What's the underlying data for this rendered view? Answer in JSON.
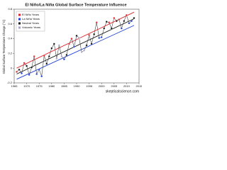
{
  "chart_data": {
    "type": "line",
    "title": "El Niño/La Niña Global Surface Temperature Influence",
    "y_label": "Global Surface Temperature Change (°C)",
    "source": "skepticalscience.com",
    "x": [
      1966,
      1967,
      1968,
      1969,
      1970,
      1971,
      1972,
      1973,
      1974,
      1975,
      1976,
      1977,
      1978,
      1979,
      1980,
      1981,
      1982,
      1983,
      1984,
      1985,
      1986,
      1987,
      1988,
      1989,
      1990,
      1991,
      1992,
      1993,
      1994,
      1995,
      1996,
      1997,
      1998,
      1999,
      2000,
      2001,
      2002,
      2003,
      2004,
      2005,
      2006,
      2007,
      2008,
      2009,
      2010,
      2011,
      2012,
      2013
    ],
    "series": [
      {
        "name": "El Niño Years",
        "color": "#e3262b",
        "values": [
          -0.05,
          null,
          null,
          0.07,
          null,
          null,
          null,
          0.16,
          null,
          null,
          null,
          0.17,
          null,
          null,
          null,
          null,
          null,
          null,
          null,
          null,
          null,
          0.33,
          0.4,
          null,
          null,
          null,
          null,
          null,
          null,
          0.45,
          null,
          null,
          0.62,
          null,
          null,
          null,
          null,
          0.62,
          null,
          0.68,
          null,
          0.66,
          null,
          null,
          0.72,
          null,
          null,
          null
        ]
      },
      {
        "name": "La Niña Years",
        "color": "#1f3fd6",
        "values": [
          null,
          null,
          -0.07,
          null,
          null,
          -0.09,
          null,
          null,
          -0.08,
          -0.02,
          -0.11,
          null,
          null,
          null,
          null,
          null,
          null,
          null,
          null,
          0.12,
          null,
          null,
          null,
          0.29,
          null,
          null,
          null,
          null,
          null,
          null,
          null,
          null,
          null,
          0.41,
          0.42,
          null,
          null,
          null,
          null,
          null,
          null,
          null,
          0.54,
          null,
          null,
          0.61,
          0.64,
          null
        ]
      },
      {
        "name": "Neutral Years",
        "color": "#111111",
        "values": [
          null,
          -0.02,
          null,
          null,
          0.03,
          null,
          0.01,
          null,
          null,
          null,
          null,
          null,
          0.06,
          0.16,
          0.27,
          0.33,
          null,
          null,
          null,
          null,
          0.18,
          null,
          null,
          null,
          0.44,
          null,
          null,
          null,
          0.31,
          null,
          0.33,
          0.46,
          null,
          null,
          null,
          0.54,
          0.63,
          null,
          0.54,
          null,
          0.64,
          null,
          null,
          0.64,
          null,
          null,
          null,
          0.68
        ]
      },
      {
        "name": "Volcanic Years",
        "color": "#a9a2c8",
        "values": [
          null,
          null,
          null,
          null,
          null,
          null,
          null,
          null,
          null,
          null,
          null,
          null,
          null,
          null,
          null,
          null,
          0.13,
          0.31,
          0.16,
          null,
          null,
          null,
          null,
          null,
          null,
          0.41,
          0.22,
          0.24,
          null,
          null,
          null,
          null,
          null,
          null,
          null,
          null,
          null,
          null,
          null,
          null,
          null,
          null,
          null,
          null,
          null,
          null,
          null,
          null
        ]
      }
    ],
    "line_color": "#444444",
    "trend_lines": [
      {
        "color": "#e3262b",
        "x": [
          1966,
          2013
        ],
        "values": [
          0.0,
          0.76
        ]
      },
      {
        "color": "#111111",
        "x": [
          1966,
          2013
        ],
        "values": [
          -0.08,
          0.67
        ]
      },
      {
        "color": "#1f3fd6",
        "x": [
          1966,
          2013
        ],
        "values": [
          -0.15,
          0.58
        ]
      }
    ],
    "xlim": [
      1965,
      2015
    ],
    "xticks": [
      1965,
      1970,
      1975,
      1980,
      1985,
      1990,
      1995,
      2000,
      2005,
      2010,
      2015
    ],
    "ylim": [
      -0.2,
      0.8
    ],
    "yticks": [
      -0.2,
      0,
      0.2,
      0.4,
      0.6,
      0.8
    ],
    "legend": "top-left",
    "grid": false
  }
}
